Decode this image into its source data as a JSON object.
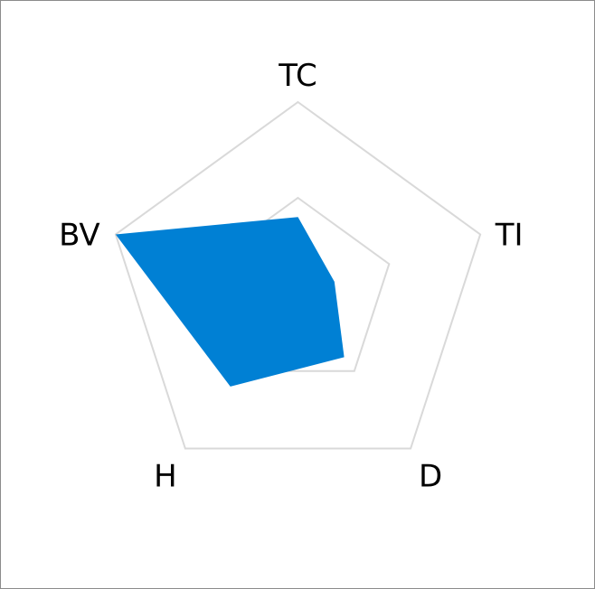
{
  "chart_data": {
    "type": "radar",
    "categories": [
      "TC",
      "TI",
      "D",
      "H",
      "BV"
    ],
    "series": [
      {
        "values": [
          0.4,
          0.2,
          0.41,
          0.6,
          1.0
        ],
        "color": "#0080d4"
      }
    ],
    "rlim": [
      0,
      1
    ],
    "grid_levels": [
      0.5,
      1.0
    ],
    "grid_color": "#d9d9d9",
    "legend": "none"
  }
}
